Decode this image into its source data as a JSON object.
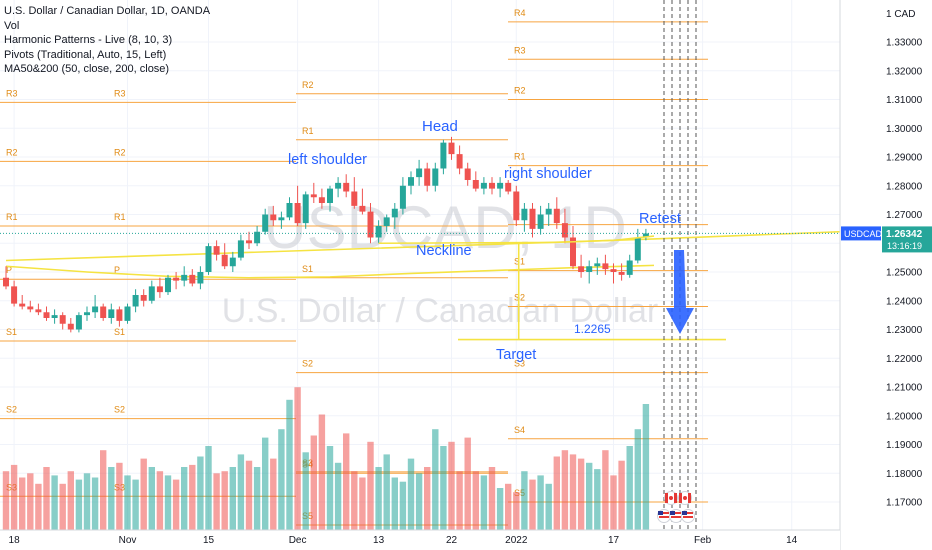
{
  "legend": {
    "symbol": "U.S. Dollar / Canadian Dollar, 1D, OANDA",
    "indicators": [
      "Vol",
      "Harmonic Patterns - Live (8, 10, 3)",
      "Pivots (Traditional, Auto, 15, Left)",
      "MA50&200 (50, close, 200, close)"
    ]
  },
  "watermark": {
    "ticker": "USDCAD, 1D",
    "name": "U.S. Dollar / Canadian Dollar"
  },
  "price_axis": {
    "currency": "CAD",
    "ticks": [
      "1.33000",
      "1.32000",
      "1.31000",
      "1.30000",
      "1.29000",
      "1.28000",
      "1.27000",
      "1.26000",
      "1.25000",
      "1.24000",
      "1.23000",
      "1.22000",
      "1.21000",
      "1.20000",
      "1.19000",
      "1.18000",
      "1.17000"
    ],
    "current_symbol": "USDCAD",
    "current_price": "1.26342",
    "countdown": "13:16:19"
  },
  "time_axis": {
    "labels": [
      "18",
      "Nov",
      "15",
      "Dec",
      "13",
      "22",
      "2022",
      "17",
      "Feb",
      "14"
    ]
  },
  "annotations": {
    "head": "Head",
    "left_shoulder": "left shoulder",
    "right_shoulder": "right shoulder",
    "neckline": "Neckline",
    "retest": "Retest",
    "target": "Target",
    "target_price": "1.2265"
  },
  "colors": {
    "bull": "#26a69a",
    "bear": "#ef5350",
    "bull_candle": "#26a69a",
    "bear_candle": "#ef5350",
    "pivot": "#f7a440",
    "ma": "#f5e342",
    "annotation": "#2962ff",
    "price_tag": "#2962ff"
  },
  "icons": [
    "canada-flag-icon",
    "us-flag-icon"
  ],
  "chart_data": {
    "type": "candlestick",
    "title": "U.S. Dollar / Canadian Dollar, 1D, OANDA",
    "ylim": [
      1.165,
      1.352
    ],
    "start_date": "2021-10-11",
    "candles": [
      [
        1.248,
        1.252,
        1.244,
        1.245
      ],
      [
        1.245,
        1.247,
        1.238,
        1.239
      ],
      [
        1.239,
        1.242,
        1.237,
        1.238
      ],
      [
        1.238,
        1.24,
        1.236,
        1.237
      ],
      [
        1.237,
        1.239,
        1.235,
        1.236
      ],
      [
        1.236,
        1.238,
        1.233,
        1.234
      ],
      [
        1.234,
        1.237,
        1.232,
        1.235
      ],
      [
        1.235,
        1.236,
        1.23,
        1.232
      ],
      [
        1.232,
        1.234,
        1.229,
        1.23
      ],
      [
        1.23,
        1.236,
        1.229,
        1.235
      ],
      [
        1.235,
        1.238,
        1.233,
        1.236
      ],
      [
        1.236,
        1.242,
        1.234,
        1.238
      ],
      [
        1.238,
        1.239,
        1.233,
        1.234
      ],
      [
        1.234,
        1.239,
        1.232,
        1.237
      ],
      [
        1.237,
        1.238,
        1.231,
        1.233
      ],
      [
        1.233,
        1.239,
        1.232,
        1.238
      ],
      [
        1.238,
        1.244,
        1.236,
        1.242
      ],
      [
        1.242,
        1.244,
        1.238,
        1.24
      ],
      [
        1.24,
        1.247,
        1.239,
        1.245
      ],
      [
        1.245,
        1.248,
        1.241,
        1.243
      ],
      [
        1.243,
        1.249,
        1.242,
        1.248
      ],
      [
        1.248,
        1.25,
        1.244,
        1.247
      ],
      [
        1.247,
        1.252,
        1.245,
        1.249
      ],
      [
        1.249,
        1.251,
        1.245,
        1.246
      ],
      [
        1.246,
        1.252,
        1.244,
        1.25
      ],
      [
        1.25,
        1.26,
        1.249,
        1.259
      ],
      [
        1.259,
        1.261,
        1.254,
        1.256
      ],
      [
        1.256,
        1.26,
        1.251,
        1.252
      ],
      [
        1.252,
        1.257,
        1.25,
        1.255
      ],
      [
        1.255,
        1.263,
        1.254,
        1.261
      ],
      [
        1.261,
        1.264,
        1.258,
        1.26
      ],
      [
        1.26,
        1.266,
        1.259,
        1.264
      ],
      [
        1.264,
        1.272,
        1.263,
        1.27
      ],
      [
        1.27,
        1.273,
        1.266,
        1.268
      ],
      [
        1.268,
        1.271,
        1.265,
        1.269
      ],
      [
        1.269,
        1.276,
        1.268,
        1.274
      ],
      [
        1.274,
        1.28,
        1.266,
        1.267
      ],
      [
        1.267,
        1.278,
        1.265,
        1.277
      ],
      [
        1.277,
        1.281,
        1.274,
        1.276
      ],
      [
        1.276,
        1.279,
        1.272,
        1.274
      ],
      [
        1.274,
        1.28,
        1.271,
        1.279
      ],
      [
        1.279,
        1.283,
        1.276,
        1.281
      ],
      [
        1.281,
        1.284,
        1.276,
        1.278
      ],
      [
        1.278,
        1.283,
        1.272,
        1.273
      ],
      [
        1.273,
        1.279,
        1.27,
        1.271
      ],
      [
        1.271,
        1.274,
        1.26,
        1.262
      ],
      [
        1.262,
        1.268,
        1.26,
        1.266
      ],
      [
        1.266,
        1.27,
        1.264,
        1.269
      ],
      [
        1.269,
        1.274,
        1.265,
        1.272
      ],
      [
        1.272,
        1.283,
        1.27,
        1.28
      ],
      [
        1.28,
        1.285,
        1.277,
        1.283
      ],
      [
        1.283,
        1.289,
        1.28,
        1.286
      ],
      [
        1.286,
        1.288,
        1.278,
        1.28
      ],
      [
        1.28,
        1.288,
        1.278,
        1.286
      ],
      [
        1.286,
        1.296,
        1.284,
        1.295
      ],
      [
        1.295,
        1.297,
        1.289,
        1.291
      ],
      [
        1.291,
        1.294,
        1.284,
        1.286
      ],
      [
        1.286,
        1.288,
        1.28,
        1.282
      ],
      [
        1.282,
        1.285,
        1.278,
        1.279
      ],
      [
        1.279,
        1.283,
        1.277,
        1.281
      ],
      [
        1.281,
        1.283,
        1.277,
        1.279
      ],
      [
        1.279,
        1.283,
        1.276,
        1.281
      ],
      [
        1.281,
        1.282,
        1.277,
        1.278
      ],
      [
        1.278,
        1.28,
        1.266,
        1.268
      ],
      [
        1.268,
        1.274,
        1.264,
        1.272
      ],
      [
        1.272,
        1.274,
        1.262,
        1.265
      ],
      [
        1.265,
        1.273,
        1.263,
        1.27
      ],
      [
        1.27,
        1.274,
        1.266,
        1.272
      ],
      [
        1.272,
        1.276,
        1.265,
        1.267
      ],
      [
        1.267,
        1.272,
        1.26,
        1.262
      ],
      [
        1.262,
        1.266,
        1.251,
        1.252
      ],
      [
        1.252,
        1.256,
        1.248,
        1.25
      ],
      [
        1.25,
        1.254,
        1.246,
        1.252
      ],
      [
        1.252,
        1.255,
        1.249,
        1.253
      ],
      [
        1.253,
        1.256,
        1.249,
        1.251
      ],
      [
        1.251,
        1.253,
        1.246,
        1.25
      ],
      [
        1.25,
        1.253,
        1.247,
        1.249
      ],
      [
        1.249,
        1.256,
        1.248,
        1.254
      ],
      [
        1.254,
        1.265,
        1.253,
        1.262
      ],
      [
        1.262,
        1.265,
        1.261,
        1.2634
      ]
    ],
    "volume": [
      0.28,
      0.31,
      0.25,
      0.27,
      0.22,
      0.3,
      0.26,
      0.22,
      0.28,
      0.24,
      0.27,
      0.25,
      0.38,
      0.3,
      0.32,
      0.26,
      0.24,
      0.34,
      0.3,
      0.28,
      0.26,
      0.24,
      0.3,
      0.31,
      0.35,
      0.4,
      0.27,
      0.28,
      0.3,
      0.36,
      0.33,
      0.3,
      0.44,
      0.34,
      0.48,
      0.62,
      0.68,
      0.37,
      0.45,
      0.55,
      0.4,
      0.32,
      0.46,
      0.28,
      0.25,
      0.42,
      0.3,
      0.36,
      0.25,
      0.23,
      0.34,
      0.27,
      0.3,
      0.48,
      0.4,
      0.42,
      0.28,
      0.44,
      0.28,
      0.26,
      0.3,
      0.2,
      0.22,
      0.18,
      0.28,
      0.24,
      0.26,
      0.22,
      0.35,
      0.38,
      0.36,
      0.34,
      0.32,
      0.29,
      0.38,
      0.26,
      0.33,
      0.4,
      0.48,
      0.6
    ],
    "ma50": [
      [
        0,
        1.252
      ],
      [
        10,
        1.25
      ],
      [
        20,
        1.2485
      ],
      [
        30,
        1.248
      ],
      [
        40,
        1.2483
      ],
      [
        50,
        1.2495
      ],
      [
        60,
        1.2505
      ],
      [
        70,
        1.2515
      ],
      [
        80,
        1.2523
      ]
    ],
    "ma200": [
      [
        0,
        1.254
      ],
      [
        80,
        1.2615
      ],
      [
        112,
        1.265
      ]
    ],
    "neckline": [
      [
        46,
        1.26
      ],
      [
        68,
        1.2603
      ],
      [
        75,
        1.261
      ],
      [
        80,
        1.2625
      ]
    ],
    "target_line": [
      [
        66,
        1.2265
      ],
      [
        104,
        1.2265
      ]
    ],
    "projection_drop": [
      [
        67,
        1.2605
      ],
      [
        67,
        1.2265
      ]
    ]
  }
}
